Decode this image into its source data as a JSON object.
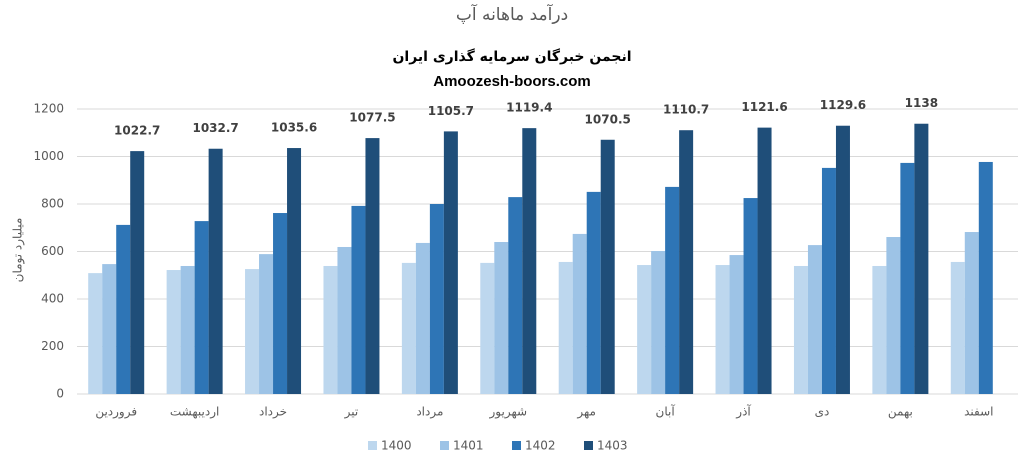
{
  "chart_data": {
    "type": "bar",
    "title": "درآمد ماهانه آپ",
    "subtitle": "انجمن خبرگان سرمایه گذاری ایران",
    "source": "Amoozesh-boors.com",
    "y_label": "میلیارد تومان",
    "categories": [
      "فروردین",
      "اردیبهشت",
      "خرداد",
      "تیر",
      "مرداد",
      "شهریور",
      "مهر",
      "آبان",
      "آذر",
      "دی",
      "بهمن",
      "اسفند"
    ],
    "series": [
      {
        "name": "1400",
        "color": "#bdd7ee",
        "values": [
          509,
          522,
          526,
          539,
          552,
          552,
          556,
          543,
          543,
          539,
          539,
          556
        ]
      },
      {
        "name": "1401",
        "color": "#9dc3e6",
        "values": [
          547,
          539,
          589,
          619,
          636,
          640,
          674,
          602,
          585,
          627,
          661,
          682
        ]
      },
      {
        "name": "1402",
        "color": "#2e75b6",
        "values": [
          712,
          728,
          762,
          792,
          800,
          829,
          851,
          872,
          825,
          952,
          973,
          977
        ]
      },
      {
        "name": "1403",
        "color": "#1f4e79",
        "data_labels": true,
        "values": [
          1022.7,
          1032.7,
          1035.6,
          1077.5,
          1105.7,
          1119.4,
          1070.5,
          1110.7,
          1121.6,
          1129.6,
          1138,
          null
        ]
      }
    ],
    "ylim": [
      0,
      1200
    ],
    "yticks": [
      0,
      200,
      400,
      600,
      800,
      1000,
      1200
    ],
    "grid": true,
    "legend": "bottom"
  }
}
